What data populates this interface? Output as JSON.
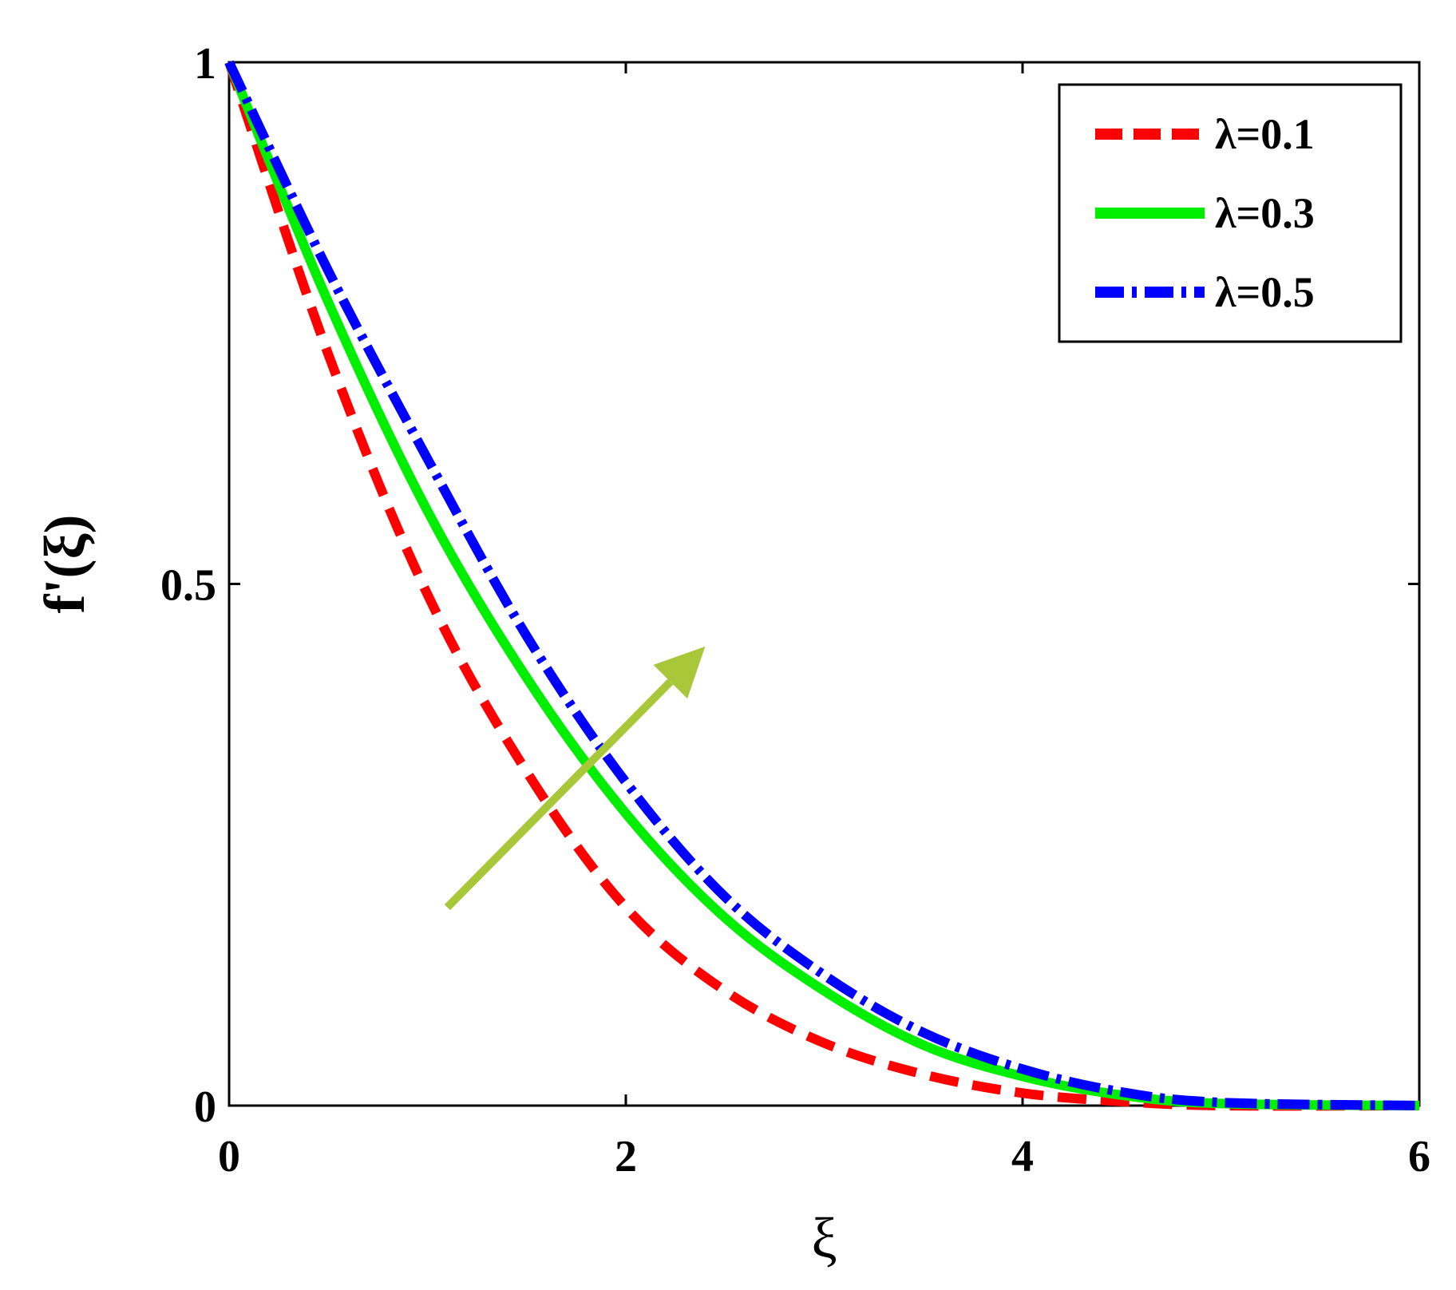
{
  "chart_data": {
    "type": "line",
    "title": "",
    "xlabel": "ξ",
    "ylabel": "f'(ξ)",
    "xlim": [
      0,
      6
    ],
    "ylim": [
      0,
      1
    ],
    "xticks": [
      0,
      2,
      4,
      6
    ],
    "xtick_labels": [
      "0",
      "2",
      "4",
      "6"
    ],
    "yticks": [
      0,
      0.5,
      1
    ],
    "ytick_labels": [
      "0",
      "0.5",
      "1"
    ],
    "grid": false,
    "legend_position": "top-right",
    "series": [
      {
        "name": "λ=0.1",
        "color": "#ff0000",
        "dash": "dashed",
        "x": [
          0,
          0.5,
          1,
          1.5,
          2,
          2.5,
          3,
          3.5,
          4,
          4.5,
          5,
          6
        ],
        "y": [
          1,
          0.72,
          0.49,
          0.32,
          0.19,
          0.11,
          0.06,
          0.03,
          0.012,
          0.004,
          0,
          0
        ]
      },
      {
        "name": "λ=0.3",
        "color": "#00ee00",
        "dash": "solid",
        "x": [
          0,
          0.5,
          1,
          1.5,
          2,
          2.5,
          3,
          3.5,
          4,
          4.5,
          5,
          6
        ],
        "y": [
          1,
          0.77,
          0.57,
          0.41,
          0.28,
          0.18,
          0.11,
          0.058,
          0.028,
          0.01,
          0.002,
          0
        ]
      },
      {
        "name": "λ=0.5",
        "color": "#0000ff",
        "dash": "dash-dot",
        "x": [
          0,
          0.5,
          1,
          1.5,
          2,
          2.5,
          3,
          3.5,
          4,
          4.5,
          5,
          6
        ],
        "y": [
          1,
          0.8,
          0.62,
          0.45,
          0.31,
          0.2,
          0.125,
          0.07,
          0.035,
          0.013,
          0.003,
          0
        ]
      }
    ],
    "annotations": [
      {
        "type": "arrow",
        "color": "#a8c83a",
        "from": [
          1.1,
          0.19
        ],
        "to": [
          2.4,
          0.44
        ]
      }
    ]
  }
}
